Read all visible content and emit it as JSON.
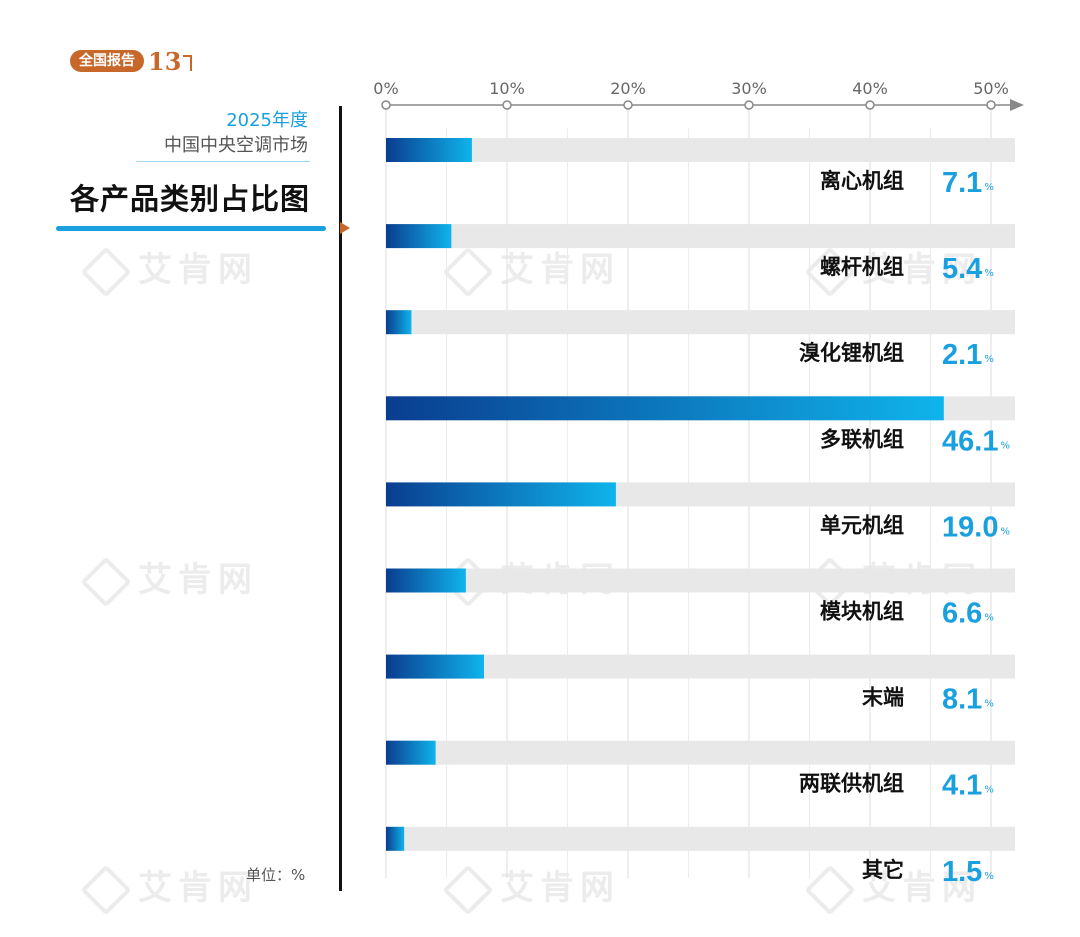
{
  "badge": {
    "label": "全国报告",
    "number": "13"
  },
  "header": {
    "year": "2025年度",
    "market": "中国中央空调市场",
    "title": "各产品类别占比图"
  },
  "unit_label": "单位：%",
  "watermark": "艾肯网",
  "colors": {
    "accent": "#1aa0de",
    "bar_start": "#0a3d8f",
    "bar_end": "#0fb4ec",
    "track": "#e8e8e8",
    "badge": "#c8672a"
  },
  "chart_data": {
    "type": "bar",
    "orientation": "horizontal",
    "title": "各产品类别占比图",
    "unit": "%",
    "xlim": [
      0,
      50
    ],
    "xticks": [
      "0%",
      "10%",
      "20%",
      "30%",
      "40%",
      "50%"
    ],
    "categories": [
      "离心机组",
      "螺杆机组",
      "溴化锂机组",
      "多联机组",
      "单元机组",
      "模块机组",
      "末端",
      "两联供机组",
      "其它"
    ],
    "values": [
      7.1,
      5.4,
      2.1,
      46.1,
      19.0,
      6.6,
      8.1,
      4.1,
      1.5
    ],
    "value_labels": [
      "7.1",
      "5.4",
      "2.1",
      "46.1",
      "19.0",
      "6.6",
      "8.1",
      "4.1",
      "1.5"
    ]
  }
}
